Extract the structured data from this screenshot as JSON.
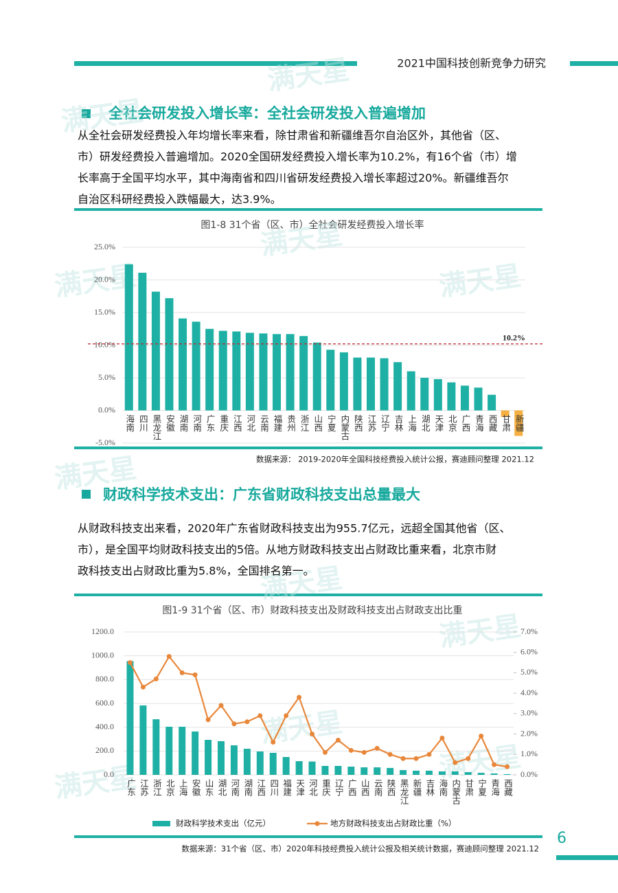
{
  "header": {
    "title": "2021中国科技创新竞争力研究"
  },
  "watermark": "满天星",
  "sections": [
    {
      "title": "全社会研发投入增长率：全社会研发投入普遍增加",
      "paragraph": [
        "从全社会研发经费投入年均增长率来看，除甘肃省和新疆维吾尔自治区外，其他省（区、",
        "市）研发经费投入普遍增加。2020全国研发经费投入增长率为10.2%，有16个省（市）增",
        "长率高于全国平均水平，其中海南省和四川省研发经费投入增长率超过20%。新疆维吾尔",
        "自治区科研经费投入跌幅最大，达3.9%。"
      ],
      "source": "数据来源：  2019-2020年全国科技经费投入统计公报，赛迪顾问整理 2021.12"
    },
    {
      "title": "财政科学技术支出：广东省财政科技支出总量最大",
      "paragraph": [
        "从财政科技支出来看，2020年广东省财政科技支出为955.7亿元，远超全国其他省（区、",
        "市），是全国平均财政科技支出的5倍。从地方财政科技支出占财政比重来看，北京市财",
        "政科技支出占财政比重为5.8%，全国排名第一。"
      ],
      "source": "数据来源：31个省（区、市）2020年科技经费投入统计公报及相关统计数据，赛迪顾问整理 2021.12"
    }
  ],
  "page_number": "6",
  "chart_data": [
    {
      "type": "bar",
      "title": "图1-8 31个省（区、市）全社会研发经费投入增长率",
      "categories": [
        "海南",
        "四川",
        "黑龙江",
        "安徽",
        "湖南",
        "河南",
        "广东",
        "重庆",
        "江西",
        "河北",
        "云南",
        "福建",
        "贵州",
        "浙江",
        "山西",
        "宁夏",
        "内蒙古",
        "陕西",
        "江苏",
        "辽宁",
        "吉林",
        "上海",
        "湖北",
        "天津",
        "北京",
        "广西",
        "青海",
        "西藏",
        "甘肃",
        "新疆"
      ],
      "values": [
        22.4,
        21.1,
        18.2,
        17.2,
        14.1,
        13.6,
        12.5,
        12.2,
        12.1,
        11.9,
        11.8,
        11.7,
        11.7,
        11.4,
        10.4,
        9.3,
        8.9,
        8.1,
        8.1,
        8.0,
        7.4,
        6.0,
        5.0,
        4.8,
        4.3,
        3.8,
        3.5,
        2.4,
        -1.0,
        -3.9
      ],
      "colors": [
        "#1fb0a5",
        "#1fb0a5",
        "#1fb0a5",
        "#1fb0a5",
        "#1fb0a5",
        "#1fb0a5",
        "#1fb0a5",
        "#1fb0a5",
        "#1fb0a5",
        "#1fb0a5",
        "#1fb0a5",
        "#1fb0a5",
        "#1fb0a5",
        "#1fb0a5",
        "#1fb0a5",
        "#1fb0a5",
        "#1fb0a5",
        "#1fb0a5",
        "#1fb0a5",
        "#1fb0a5",
        "#1fb0a5",
        "#1fb0a5",
        "#1fb0a5",
        "#1fb0a5",
        "#1fb0a5",
        "#1fb0a5",
        "#1fb0a5",
        "#1fb0a5",
        "#f5b041",
        "#f5b041"
      ],
      "ylim": [
        -5,
        25
      ],
      "yticks": [
        {
          "value": -5,
          "label": "-5.0%"
        },
        {
          "value": 0,
          "label": "0.0%"
        },
        {
          "value": 5,
          "label": "5.0%"
        },
        {
          "value": 10,
          "label": "10.0%"
        },
        {
          "value": 15,
          "label": "15.0%"
        },
        {
          "value": 20,
          "label": "20.0%"
        },
        {
          "value": 25,
          "label": "25.0%"
        }
      ],
      "grid": true,
      "reference_line": {
        "value": 10.2,
        "label": "10.2%",
        "color": "#c0282d"
      }
    },
    {
      "type": "combo",
      "title": "图1-9 31个省（区、市）财政科技支出及财政科技支出占财政支出比重",
      "categories": [
        "广东",
        "江苏",
        "浙江",
        "北京",
        "上海",
        "安徽",
        "山东",
        "湖北",
        "河南",
        "湖南",
        "江西",
        "四川",
        "福建",
        "天津",
        "河北",
        "重庆",
        "辽宁",
        "广西",
        "山西",
        "云南",
        "陕西",
        "黑龙江",
        "新疆",
        "吉林",
        "海南",
        "内蒙古",
        "甘肃",
        "宁夏",
        "青海",
        "西藏"
      ],
      "series": [
        {
          "name": "财政科学技术支出（亿元）",
          "type": "bar",
          "color": "#1fb0a5",
          "values": [
            955.7,
            583,
            467,
            404,
            404,
            364,
            294,
            283,
            248,
            219,
            196,
            185,
            150,
            115,
            112,
            75,
            75,
            69,
            63,
            63,
            58,
            40,
            35,
            35,
            29,
            29,
            23,
            17,
            12,
            6
          ]
        },
        {
          "name": "地方财政科技支出占财政比重（%）",
          "type": "line",
          "axis": "y2",
          "color": "#e8873a",
          "values": [
            5.5,
            4.3,
            4.7,
            5.8,
            5.0,
            4.9,
            2.7,
            3.4,
            2.5,
            2.6,
            2.9,
            1.6,
            2.9,
            3.8,
            2.0,
            1.1,
            1.7,
            1.2,
            1.1,
            1.3,
            1.0,
            0.8,
            0.8,
            1.0,
            1.8,
            0.6,
            0.8,
            1.9,
            0.5,
            0.4
          ]
        }
      ],
      "ylim": [
        0,
        1200
      ],
      "yticks": [
        {
          "value": 0,
          "label": "0.0"
        },
        {
          "value": 200,
          "label": "200.0"
        },
        {
          "value": 400,
          "label": "400.0"
        },
        {
          "value": 600,
          "label": "600.0"
        },
        {
          "value": 800,
          "label": "800.0"
        },
        {
          "value": 1000,
          "label": "1000.0"
        },
        {
          "value": 1200,
          "label": "1200.0"
        }
      ],
      "y2lim": [
        0,
        7
      ],
      "y2ticks": [
        {
          "value": 0,
          "label": "0.0%"
        },
        {
          "value": 1,
          "label": "1.0%"
        },
        {
          "value": 2,
          "label": "2.0%"
        },
        {
          "value": 3,
          "label": "3.0%"
        },
        {
          "value": 4,
          "label": "4.0%"
        },
        {
          "value": 5,
          "label": "5.0%"
        },
        {
          "value": 6,
          "label": "6.0%"
        },
        {
          "value": 7,
          "label": "7.0%"
        }
      ],
      "grid": true,
      "legend": "bottom"
    }
  ]
}
